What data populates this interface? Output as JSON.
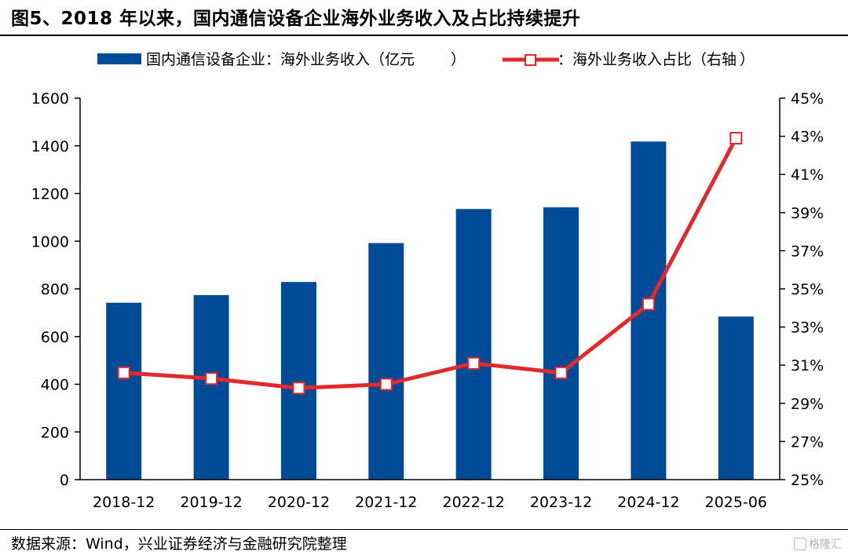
{
  "figure": {
    "title": "图5、2018 年以来，国内通信设备企业海外业务收入及占比持续提升",
    "source": "数据来源：Wind，兴业证券经济与金融研究院整理",
    "watermark": "格隆汇"
  },
  "chart_data": {
    "type": "bar+line",
    "categories": [
      "2018-12",
      "2019-12",
      "2020-12",
      "2021-12",
      "2022-12",
      "2023-12",
      "2024-12",
      "2025-06"
    ],
    "series": [
      {
        "name": "国内通信设备企业：海外业务收入（亿元",
        "type": "bar",
        "axis": "left",
        "color": "#004b98",
        "values": [
          742,
          774,
          829,
          992,
          1135,
          1142,
          1418,
          684
        ]
      },
      {
        "name": "：海外业务收入占比（右轴",
        "type": "line",
        "axis": "right",
        "color": "#e2292b",
        "values": [
          30.6,
          30.3,
          29.8,
          30.0,
          31.1,
          30.6,
          34.2,
          42.9
        ],
        "unit": "%"
      }
    ],
    "yleft": {
      "ylim": [
        0,
        1600
      ],
      "ticks": [
        0,
        200,
        400,
        600,
        800,
        1000,
        1200,
        1400,
        1600
      ]
    },
    "yright": {
      "ylim": [
        25,
        45
      ],
      "ticks": [
        25,
        27,
        29,
        31,
        33,
        35,
        37,
        39,
        41,
        43,
        45
      ],
      "suffix": "%"
    },
    "legend_placement": "top",
    "grid": false
  }
}
